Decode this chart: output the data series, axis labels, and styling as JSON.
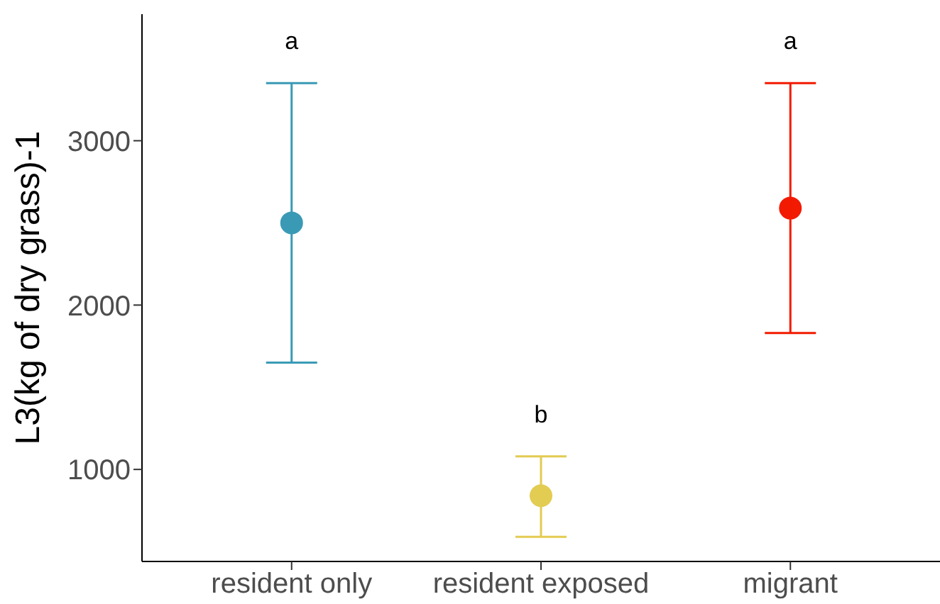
{
  "chart_data": {
    "type": "scatter",
    "ylabel": "L3(kg of dry grass)-1",
    "categories": [
      "resident only",
      "resident exposed",
      "migrant"
    ],
    "values": [
      2500,
      840,
      2590
    ],
    "colors": [
      "#3a9ab5",
      "#e2cc52",
      "#f21a00"
    ],
    "errors": [
      [
        1650,
        3350
      ],
      [
        590,
        1080
      ],
      [
        1830,
        3350
      ]
    ],
    "ylim": [
      440,
      3770
    ],
    "yticks": [
      1000,
      2000,
      3000
    ],
    "marker": "circle",
    "annotations": [
      "a",
      "b",
      "a"
    ]
  }
}
